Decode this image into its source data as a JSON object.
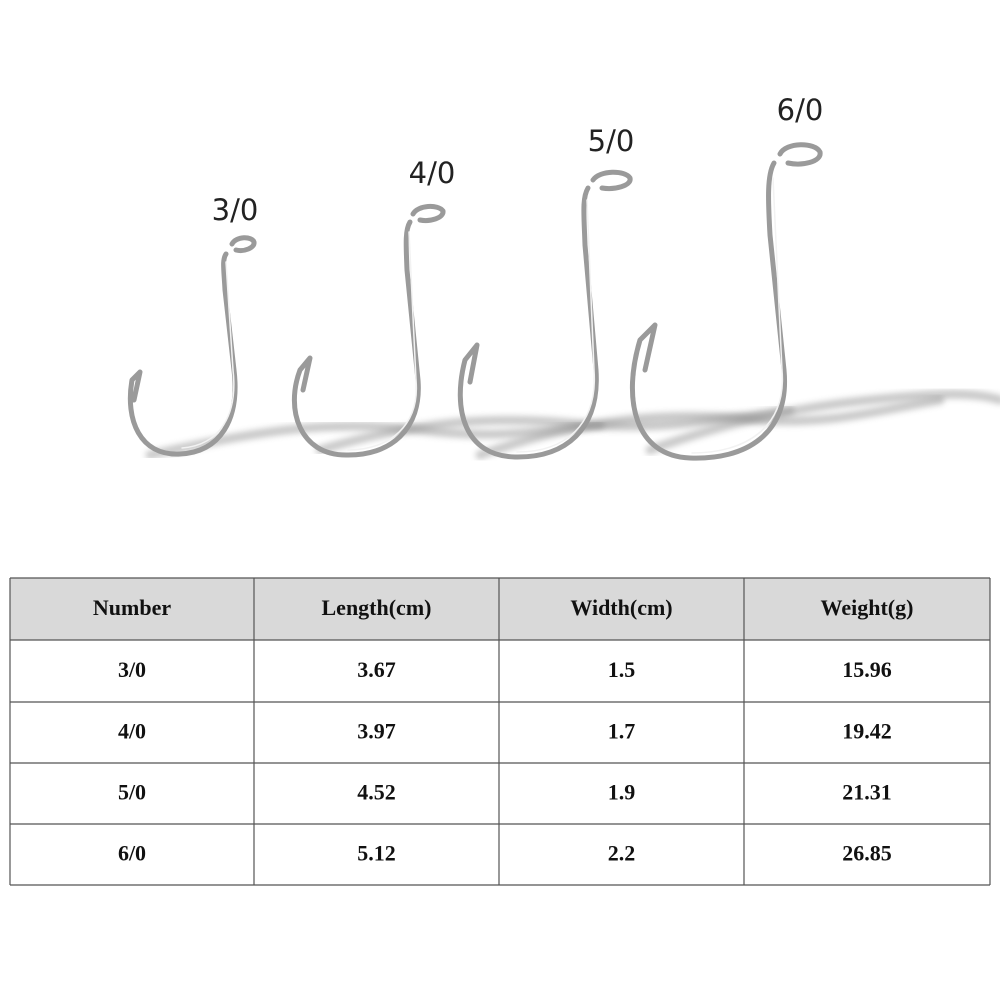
{
  "hooks": [
    {
      "label": "3/0"
    },
    {
      "label": "4/0"
    },
    {
      "label": "5/0"
    },
    {
      "label": "6/0"
    }
  ],
  "table": {
    "header": [
      "Number",
      "Length(cm)",
      "Width(cm)",
      "Weight(g)"
    ],
    "rows": [
      [
        "3/0",
        "3.67",
        "1.5",
        "15.96"
      ],
      [
        "4/0",
        "3.97",
        "1.7",
        "19.42"
      ],
      [
        "5/0",
        "4.52",
        "1.9",
        "21.31"
      ],
      [
        "6/0",
        "5.12",
        "2.2",
        "26.85"
      ]
    ]
  }
}
